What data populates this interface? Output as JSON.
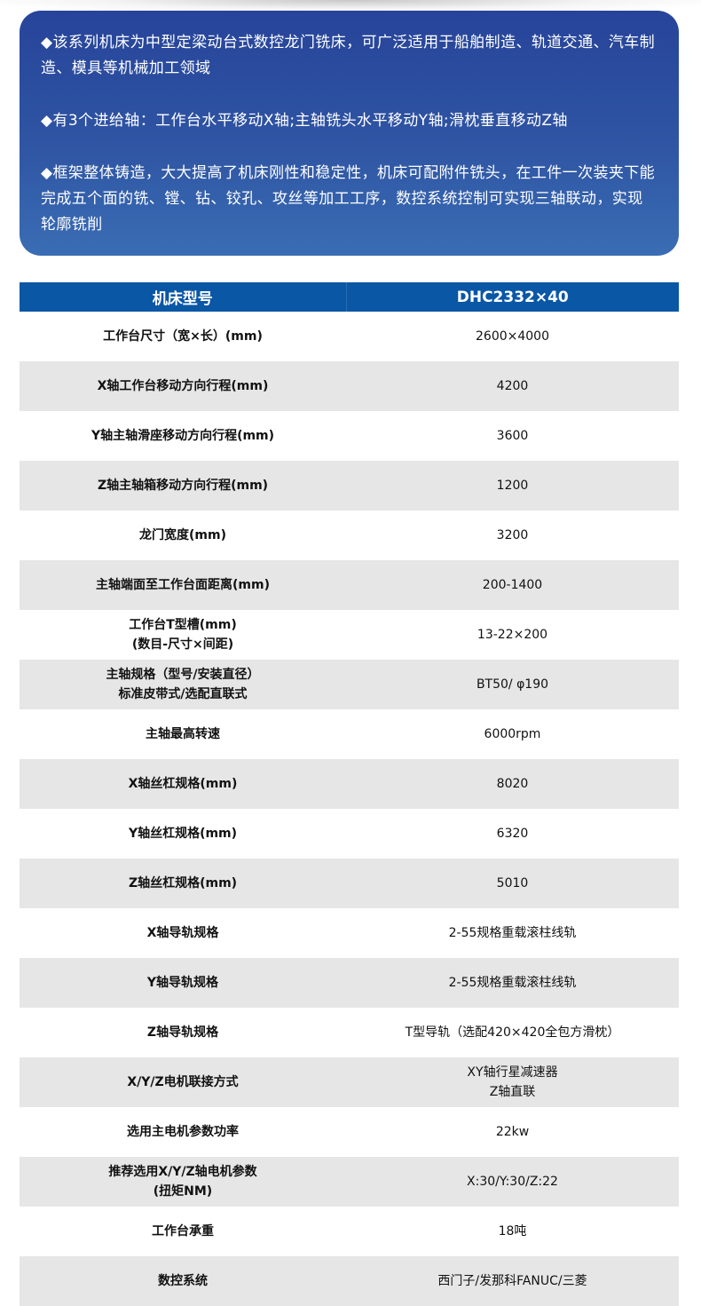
{
  "intro": {
    "paragraphs": [
      "◆该系列机床为中型定梁动台式数控龙门铣床，可广泛适用于船舶制造、轨道交通、汽车制造、模具等机械加工领域",
      "◆有3个进给轴：工作台水平移动X轴;主轴铣头水平移动Y轴;滑枕垂直移动Z轴",
      "◆框架整体铸造，大大提高了机床刚性和稳定性，机床可配附件铣头，在工件一次装夹下能完成五个面的铣、镗、钻、铰孔、攻丝等加工工序，数控系统控制可实现三轴联动，实现轮廓铣削"
    ]
  },
  "table": {
    "header": [
      "机床型号",
      "DHC2332×40"
    ],
    "rows": [
      {
        "label": [
          "工作台尺寸（宽×长）(mm)"
        ],
        "value": [
          "2600×4000"
        ]
      },
      {
        "label": [
          "X轴工作台移动方向行程(mm)"
        ],
        "value": [
          "4200"
        ]
      },
      {
        "label": [
          "Y轴主轴滑座移动方向行程(mm)"
        ],
        "value": [
          "3600"
        ]
      },
      {
        "label": [
          "Z轴主轴箱移动方向行程(mm)"
        ],
        "value": [
          "1200"
        ]
      },
      {
        "label": [
          "龙门宽度(mm)"
        ],
        "value": [
          "3200"
        ]
      },
      {
        "label": [
          "主轴端面至工作台面距离(mm)"
        ],
        "value": [
          "200-1400"
        ]
      },
      {
        "label": [
          "工作台T型槽(mm)",
          "(数目-尺寸×间距)"
        ],
        "value": [
          "13-22×200"
        ]
      },
      {
        "label": [
          "主轴规格（型号/安装直径）",
          "标准皮带式/选配直联式"
        ],
        "value": [
          "BT50/ φ190"
        ]
      },
      {
        "label": [
          "主轴最高转速"
        ],
        "value": [
          "6000rpm"
        ]
      },
      {
        "label": [
          "X轴丝杠规格(mm)"
        ],
        "value": [
          "8020"
        ]
      },
      {
        "label": [
          "Y轴丝杠规格(mm)"
        ],
        "value": [
          "6320"
        ]
      },
      {
        "label": [
          "Z轴丝杠规格(mm)"
        ],
        "value": [
          "5010"
        ]
      },
      {
        "label": [
          "X轴导轨规格"
        ],
        "value": [
          "2-55规格重载滚柱线轨"
        ]
      },
      {
        "label": [
          "Y轴导轨规格"
        ],
        "value": [
          "2-55规格重载滚柱线轨"
        ]
      },
      {
        "label": [
          "Z轴导轨规格"
        ],
        "value": [
          "T型导轨（选配420×420全包方滑枕）"
        ]
      },
      {
        "label": [
          "X/Y/Z电机联接方式"
        ],
        "value": [
          "XY轴行星减速器",
          "Z轴直联"
        ]
      },
      {
        "label": [
          "选用主电机参数功率"
        ],
        "value": [
          "22kw"
        ]
      },
      {
        "label": [
          "推荐选用X/Y/Z轴电机参数",
          "(扭矩NM)"
        ],
        "value": [
          "X:30/Y:30/Z:22"
        ]
      },
      {
        "label": [
          "工作台承重"
        ],
        "value": [
          "18吨"
        ]
      },
      {
        "label": [
          "数控系统"
        ],
        "value": [
          "西门子/发那科FANUC/三菱"
        ]
      }
    ]
  },
  "colors": {
    "header": "#0a57a5",
    "card_top": "#27449a",
    "card_bottom": "#3a6db4",
    "stripe": "#e6e6e6"
  }
}
